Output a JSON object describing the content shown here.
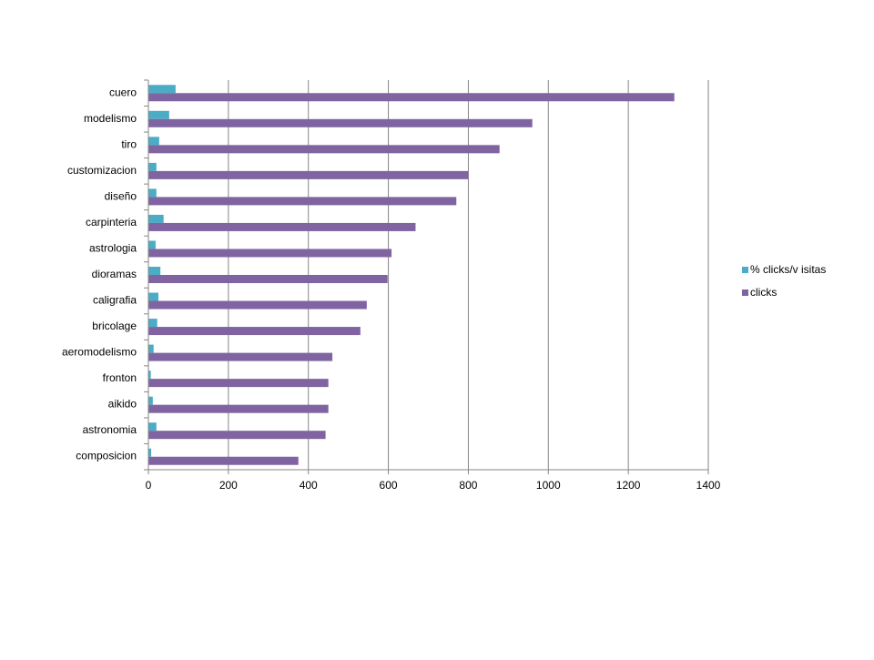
{
  "chart_data": {
    "type": "bar",
    "orientation": "horizontal",
    "title": "",
    "xlabel": "",
    "ylabel": "",
    "categories": [
      "cuero",
      "modelismo",
      "tiro",
      "customizacion",
      "diseño",
      "carpinteria",
      "astrologia",
      "dioramas",
      "caligrafia",
      "bricolage",
      "aeromodelismo",
      "fronton",
      "aikido",
      "astronomia",
      "composicion"
    ],
    "series": [
      {
        "name": "% clicks/v isitas",
        "color": "#4bacc6",
        "values": [
          68,
          52,
          27,
          20,
          20,
          38,
          18,
          30,
          25,
          22,
          13,
          6,
          11,
          20,
          7
        ]
      },
      {
        "name": "clicks",
        "color": "#8064a2",
        "values": [
          1315,
          960,
          878,
          800,
          770,
          668,
          608,
          598,
          546,
          530,
          460,
          450,
          450,
          443,
          375
        ]
      }
    ],
    "xlim": [
      0,
      1400
    ],
    "x_ticks": [
      0,
      200,
      400,
      600,
      800,
      1000,
      1200,
      1400
    ],
    "x_tick_labels": [
      "0",
      "200",
      "400",
      "600",
      "800",
      "1000",
      "1200",
      "1400"
    ],
    "grid": "vertical",
    "legend_position": "right"
  }
}
